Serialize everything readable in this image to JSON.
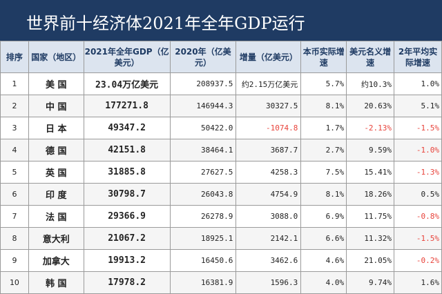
{
  "title": "世界前十经济体2021年全年GDP运行",
  "headers": [
    "排序",
    "国家（地区）",
    "2021年全年GDP（亿美元）",
    "2020年（亿美元）",
    "增量（亿美元）",
    "本币实际增速",
    "美元名义增速",
    "2年平均实际增速"
  ],
  "rows": [
    {
      "rank": "1",
      "country": "美 国",
      "gdp2021": "23.04万亿美元",
      "gdp2020": "208937.5",
      "increase": "约2.15万亿美元",
      "local_growth": "5.7%",
      "usd_growth": "约10.3%",
      "avg2y": "1.0%"
    },
    {
      "rank": "2",
      "country": "中 国",
      "gdp2021": "177271.8",
      "gdp2020": "146944.3",
      "increase": "30327.5",
      "local_growth": "8.1%",
      "usd_growth": "20.63%",
      "avg2y": "5.1%"
    },
    {
      "rank": "3",
      "country": "日 本",
      "gdp2021": "49347.2",
      "gdp2020": "50422.0",
      "increase": "-1074.8",
      "local_growth": "1.7%",
      "usd_growth": "-2.13%",
      "avg2y": "-1.5%"
    },
    {
      "rank": "4",
      "country": "德 国",
      "gdp2021": "42151.8",
      "gdp2020": "38464.1",
      "increase": "3687.7",
      "local_growth": "2.7%",
      "usd_growth": "9.59%",
      "avg2y": "-1.0%"
    },
    {
      "rank": "5",
      "country": "英 国",
      "gdp2021": "31885.8",
      "gdp2020": "27627.5",
      "increase": "4258.3",
      "local_growth": "7.5%",
      "usd_growth": "15.41%",
      "avg2y": "-1.3%"
    },
    {
      "rank": "6",
      "country": "印 度",
      "gdp2021": "30798.7",
      "gdp2020": "26043.8",
      "increase": "4754.9",
      "local_growth": "8.1%",
      "usd_growth": "18.26%",
      "avg2y": "0.5%"
    },
    {
      "rank": "7",
      "country": "法 国",
      "gdp2021": "29366.9",
      "gdp2020": "26278.9",
      "increase": "3088.0",
      "local_growth": "6.9%",
      "usd_growth": "11.75%",
      "avg2y": "-0.8%"
    },
    {
      "rank": "8",
      "country": "意大利",
      "gdp2021": "21067.2",
      "gdp2020": "18925.1",
      "increase": "2142.1",
      "local_growth": "6.6%",
      "usd_growth": "11.32%",
      "avg2y": "-1.5%"
    },
    {
      "rank": "9",
      "country": "加拿大",
      "gdp2021": "19913.2",
      "gdp2020": "16450.6",
      "increase": "3462.6",
      "local_growth": "4.6%",
      "usd_growth": "21.05%",
      "avg2y": "-0.2%"
    },
    {
      "rank": "10",
      "country": "韩 国",
      "gdp2021": "17978.2",
      "gdp2020": "16381.9",
      "increase": "1596.3",
      "local_growth": "4.0%",
      "usd_growth": "9.74%",
      "avg2y": "1.6%"
    }
  ],
  "colors": {
    "header_bar": "#1f3b63",
    "header_cells": "#dce4ef",
    "negative": "#e8423a"
  }
}
